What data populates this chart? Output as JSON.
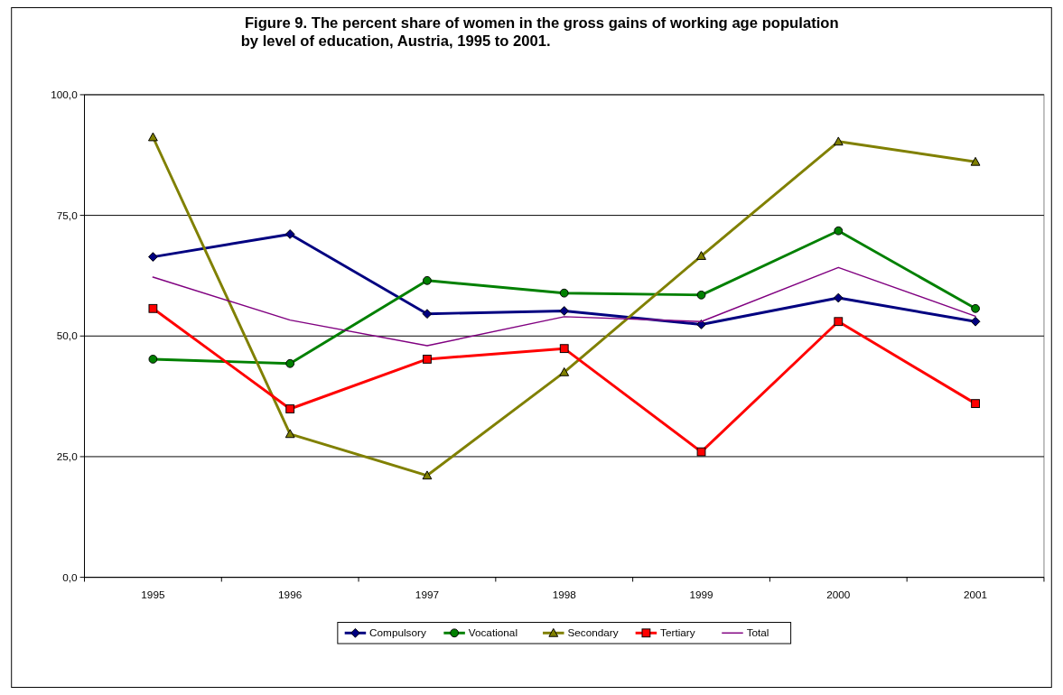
{
  "chart_data": {
    "type": "line",
    "title": "Figure 9. The percent share of women in the gross gains of working age population\nby level of education, Austria, 1995 to 2001.",
    "categories": [
      "1995",
      "1996",
      "1997",
      "1998",
      "1999",
      "2000",
      "2001"
    ],
    "series": [
      {
        "name": "Compulsory",
        "color": "#000080",
        "marker": "diamond",
        "values": [
          66.4,
          71.1,
          54.6,
          55.2,
          52.4,
          57.9,
          53.0
        ]
      },
      {
        "name": "Vocational",
        "color": "#008000",
        "marker": "circle",
        "values": [
          45.2,
          44.3,
          61.5,
          58.9,
          58.5,
          71.8,
          55.7
        ]
      },
      {
        "name": "Secondary",
        "color": "#808000",
        "marker": "triangle",
        "values": [
          91.2,
          29.7,
          21.1,
          42.5,
          66.6,
          90.3,
          86.1
        ]
      },
      {
        "name": "Tertiary",
        "color": "#ff0000",
        "marker": "square",
        "values": [
          55.7,
          34.9,
          45.2,
          47.4,
          26.0,
          53.0,
          36.0
        ]
      },
      {
        "name": "Total",
        "color": "#800080",
        "marker": "none",
        "values": [
          62.2,
          53.3,
          48.0,
          54.0,
          53.0,
          64.2,
          54.1
        ]
      }
    ],
    "ylim": [
      0,
      100
    ],
    "yticks": [
      {
        "value": 0,
        "label": "0,0"
      },
      {
        "value": 25,
        "label": "25,0"
      },
      {
        "value": 50,
        "label": "50,0"
      },
      {
        "value": 75,
        "label": "75,0"
      },
      {
        "value": 100,
        "label": "100,0"
      }
    ],
    "grid": "y",
    "legend": "bottom"
  }
}
